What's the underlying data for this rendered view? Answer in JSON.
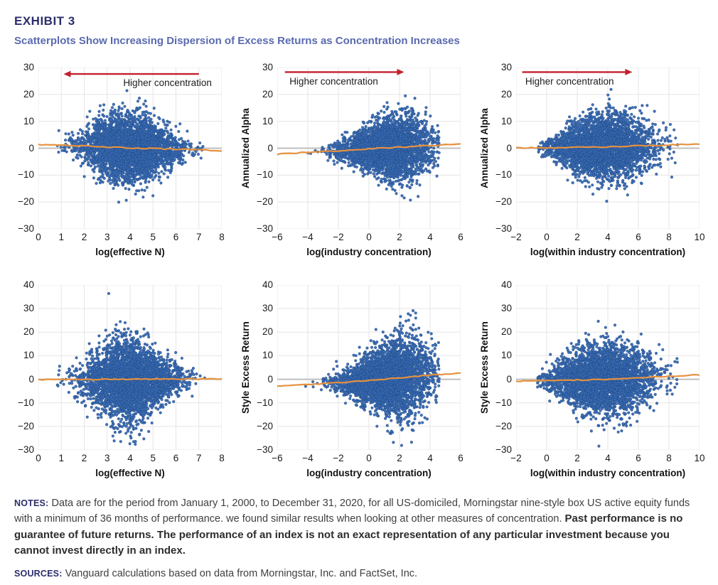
{
  "header": {
    "exhibit_label": "EXHIBIT 3",
    "title": "Scatterplots Show Increasing Dispersion of Excess Returns as Concentration Increases"
  },
  "palette": {
    "point_fill": "rgba(58,109,184,0.95)",
    "point_stroke": "rgba(39,83,143,0.8)",
    "trend_line": "#e6913e",
    "zero_line": "#bfbfbf",
    "grid_line": "#e5e5e5",
    "arrow": "#c3202f",
    "tick_text": "#1a1a1a"
  },
  "chart_data": [
    {
      "id": "alpha-effective-n",
      "type": "scatter",
      "xlabel": "log(effective N)",
      "ylabel": null,
      "xlim": [
        0,
        8
      ],
      "ylim": [
        -30,
        30
      ],
      "xticks": [
        0,
        1,
        2,
        3,
        4,
        5,
        6,
        7,
        8
      ],
      "yticks": [
        -30,
        -20,
        -10,
        0,
        10,
        20,
        30
      ],
      "grid": true,
      "zero_line": 0,
      "annotation": {
        "text": "Higher concentration",
        "arrow_from": [
          7.0,
          27.6
        ],
        "arrow_to": [
          1.1,
          27.6
        ],
        "text_pos": [
          3.7,
          26.2
        ]
      },
      "trend": [
        [
          0,
          1.4
        ],
        [
          1,
          1.15
        ],
        [
          2,
          0.85
        ],
        [
          3,
          0.45
        ],
        [
          4,
          0.1
        ],
        [
          5,
          -0.15
        ],
        [
          6,
          -0.35
        ],
        [
          7,
          -0.65
        ],
        [
          8,
          -1.1
        ]
      ],
      "scatter": {
        "seed": 11,
        "n": 3400,
        "x_mean": 4.0,
        "x_sd": 1.05,
        "x_range": [
          0.8,
          7.3
        ],
        "spread": [
          [
            0.8,
            2.0
          ],
          [
            2.0,
            3.5
          ],
          [
            2.8,
            5.5
          ],
          [
            3.8,
            6.5
          ],
          [
            4.8,
            5.6
          ],
          [
            6.0,
            3.0
          ],
          [
            7.3,
            1.1
          ]
        ]
      }
    },
    {
      "id": "alpha-industry-concentration",
      "type": "scatter",
      "xlabel": "log(industry concentration)",
      "ylabel": "Annualized Alpha",
      "xlim": [
        -6,
        6
      ],
      "ylim": [
        -30,
        30
      ],
      "xticks": [
        -6,
        -4,
        -2,
        0,
        2,
        4,
        6
      ],
      "yticks": [
        -30,
        -20,
        -10,
        0,
        10,
        20,
        30
      ],
      "grid": true,
      "zero_line": 0,
      "annotation": {
        "text": "Higher concentration",
        "arrow_from": [
          -5.5,
          28.3
        ],
        "arrow_to": [
          2.3,
          28.3
        ],
        "text_pos": [
          -5.2,
          26.9
        ]
      },
      "trend": [
        [
          -6,
          -2.2
        ],
        [
          -4,
          -1.6
        ],
        [
          -2,
          -0.9
        ],
        [
          0,
          -0.3
        ],
        [
          2,
          0.4
        ],
        [
          4,
          1.0
        ],
        [
          6,
          1.6
        ]
      ],
      "scatter": {
        "seed": 22,
        "n": 3400,
        "x_mean": 1.2,
        "x_sd": 1.5,
        "x_range": [
          -4.6,
          4.6
        ],
        "spread": [
          [
            -4.6,
            0.8
          ],
          [
            -3,
            1.3
          ],
          [
            -1.5,
            2.5
          ],
          [
            0,
            4.0
          ],
          [
            1.5,
            5.5
          ],
          [
            2.5,
            6.5
          ],
          [
            3.5,
            6.0
          ],
          [
            4.6,
            5.0
          ]
        ]
      }
    },
    {
      "id": "alpha-within-industry",
      "type": "scatter",
      "xlabel": "log(within industry concentration)",
      "ylabel": "Annualized Alpha",
      "xlim": [
        -2,
        10
      ],
      "ylim": [
        -30,
        30
      ],
      "xticks": [
        -2,
        0,
        2,
        4,
        6,
        8,
        10
      ],
      "yticks": [
        -30,
        -20,
        -10,
        0,
        10,
        20,
        30
      ],
      "grid": true,
      "zero_line": 0,
      "annotation": {
        "text": "Higher concentration",
        "arrow_from": [
          -1.6,
          28.3
        ],
        "arrow_to": [
          5.6,
          28.3
        ],
        "text_pos": [
          -1.4,
          26.9
        ]
      },
      "trend": [
        [
          -2,
          0.1
        ],
        [
          0,
          0.15
        ],
        [
          2,
          0.3
        ],
        [
          4,
          0.5
        ],
        [
          6,
          0.9
        ],
        [
          8,
          1.2
        ],
        [
          10,
          1.6
        ]
      ],
      "scatter": {
        "seed": 33,
        "n": 3400,
        "x_mean": 3.6,
        "x_sd": 1.7,
        "x_range": [
          -0.6,
          8.6
        ],
        "spread": [
          [
            -0.6,
            1.0
          ],
          [
            0.5,
            2.5
          ],
          [
            2,
            5.0
          ],
          [
            4,
            6.0
          ],
          [
            6,
            5.5
          ],
          [
            7.5,
            4.5
          ],
          [
            8.6,
            5.0
          ]
        ]
      }
    },
    {
      "id": "style-effective-n",
      "type": "scatter",
      "xlabel": "log(effective N)",
      "ylabel": null,
      "xlim": [
        0,
        8
      ],
      "ylim": [
        -30,
        40
      ],
      "xticks": [
        0,
        1,
        2,
        3,
        4,
        5,
        6,
        7,
        8
      ],
      "yticks": [
        -30,
        -20,
        -10,
        0,
        10,
        20,
        30,
        40
      ],
      "grid": true,
      "zero_line": 0,
      "annotation": null,
      "trend": [
        [
          0,
          -0.2
        ],
        [
          2,
          -0.1
        ],
        [
          4,
          0.0
        ],
        [
          6,
          0.1
        ],
        [
          8,
          0.2
        ]
      ],
      "scatter": {
        "seed": 44,
        "n": 3400,
        "x_mean": 4.0,
        "x_sd": 1.05,
        "x_range": [
          0.8,
          7.3
        ],
        "spread": [
          [
            0.8,
            2.0
          ],
          [
            2.0,
            4.5
          ],
          [
            3.0,
            8.0
          ],
          [
            3.8,
            9.0
          ],
          [
            4.8,
            7.0
          ],
          [
            6.0,
            3.5
          ],
          [
            7.3,
            1.3
          ]
        ]
      }
    },
    {
      "id": "style-industry-concentration",
      "type": "scatter",
      "xlabel": "log(industry concentration)",
      "ylabel": "Style Excess Return",
      "xlim": [
        -6,
        6
      ],
      "ylim": [
        -30,
        40
      ],
      "xticks": [
        -6,
        -4,
        -2,
        0,
        2,
        4,
        6
      ],
      "yticks": [
        -30,
        -20,
        -10,
        0,
        10,
        20,
        30,
        40
      ],
      "grid": true,
      "zero_line": 0,
      "annotation": null,
      "trend": [
        [
          -6,
          -3.0
        ],
        [
          -4,
          -2.3
        ],
        [
          -2,
          -1.4
        ],
        [
          0,
          -0.5
        ],
        [
          2,
          0.6
        ],
        [
          4,
          1.8
        ],
        [
          6,
          2.6
        ]
      ],
      "scatter": {
        "seed": 55,
        "n": 3400,
        "x_mean": 1.2,
        "x_sd": 1.5,
        "x_range": [
          -4.6,
          4.6
        ],
        "spread": [
          [
            -4.6,
            1.0
          ],
          [
            -3,
            1.8
          ],
          [
            -1.5,
            3.2
          ],
          [
            0,
            5.5
          ],
          [
            1.5,
            7.5
          ],
          [
            2.5,
            9.0
          ],
          [
            3.5,
            8.0
          ],
          [
            4.6,
            6.0
          ]
        ]
      }
    },
    {
      "id": "style-within-industry",
      "type": "scatter",
      "xlabel": "log(within industry concentration)",
      "ylabel": "Style Excess Return",
      "xlim": [
        -2,
        10
      ],
      "ylim": [
        -30,
        40
      ],
      "xticks": [
        -2,
        0,
        2,
        4,
        6,
        8,
        10
      ],
      "yticks": [
        -30,
        -20,
        -10,
        0,
        10,
        20,
        30,
        40
      ],
      "grid": true,
      "zero_line": 0,
      "annotation": null,
      "trend": [
        [
          -2,
          -0.8
        ],
        [
          0,
          -0.5
        ],
        [
          2,
          -0.3
        ],
        [
          4,
          0.0
        ],
        [
          6,
          0.6
        ],
        [
          8,
          1.3
        ],
        [
          10,
          1.9
        ]
      ],
      "scatter": {
        "seed": 66,
        "n": 3400,
        "x_mean": 3.6,
        "x_sd": 1.7,
        "x_range": [
          -0.6,
          8.6
        ],
        "spread": [
          [
            -0.6,
            1.5
          ],
          [
            0.5,
            3.5
          ],
          [
            2,
            6.5
          ],
          [
            4,
            7.5
          ],
          [
            6,
            6.5
          ],
          [
            7.5,
            4.5
          ],
          [
            8.6,
            4.0
          ]
        ]
      }
    }
  ],
  "notes": {
    "label": "NOTES:",
    "body": " Data are for the period from January 1, 2000, to December 31, 2020, for all US-domiciled, Morningstar nine-style box US active equity funds with a minimum of 36 months of performance. we found similar results when looking at other measures of concentration. ",
    "disclaimer": "Past performance is no guarantee of future returns. The performance of an index is not an exact representation of any particular investment because you cannot invest directly in an index."
  },
  "sources": {
    "label": "SOURCES:",
    "body": " Vanguard calculations based on data from Morningstar, Inc. and FactSet, Inc."
  }
}
